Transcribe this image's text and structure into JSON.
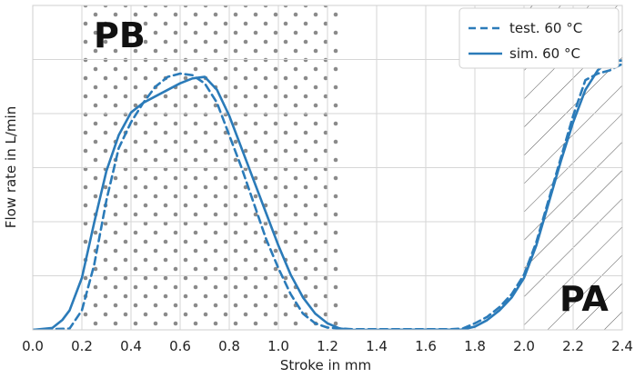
{
  "chart_data": {
    "type": "line",
    "xlabel": "Stroke in mm",
    "ylabel": "Flow rate in L/min",
    "xlim": [
      0.0,
      2.4
    ],
    "ylim": [
      0,
      1.0
    ],
    "x_ticks": [
      "0.0",
      "0.2",
      "0.4",
      "0.6",
      "0.8",
      "1.0",
      "1.2",
      "1.4",
      "1.6",
      "1.8",
      "2.0",
      "2.2",
      "2.4"
    ],
    "y_tick_labels_shown": false,
    "grid": true,
    "legend_position": "top-right",
    "regions": [
      {
        "label": "PB",
        "x_range": [
          0.2,
          1.25
        ],
        "pattern": "dots",
        "color": "#8a8a8a"
      },
      {
        "label": "PA",
        "x_range": [
          2.0,
          2.4
        ],
        "pattern": "diagonal-hatch",
        "color": "#666666"
      }
    ],
    "series": [
      {
        "name": "test. 60 °C",
        "style": "dashed",
        "color": "#2b7bb9",
        "points": [
          [
            0.0,
            0.0
          ],
          [
            0.15,
            0.004
          ],
          [
            0.2,
            0.06
          ],
          [
            0.25,
            0.2
          ],
          [
            0.3,
            0.4
          ],
          [
            0.35,
            0.56
          ],
          [
            0.4,
            0.64
          ],
          [
            0.45,
            0.7
          ],
          [
            0.5,
            0.75
          ],
          [
            0.55,
            0.78
          ],
          [
            0.6,
            0.79
          ],
          [
            0.65,
            0.785
          ],
          [
            0.7,
            0.76
          ],
          [
            0.75,
            0.7
          ],
          [
            0.8,
            0.6
          ],
          [
            0.85,
            0.5
          ],
          [
            0.9,
            0.39
          ],
          [
            0.95,
            0.28
          ],
          [
            1.0,
            0.19
          ],
          [
            1.05,
            0.11
          ],
          [
            1.1,
            0.05
          ],
          [
            1.15,
            0.02
          ],
          [
            1.2,
            0.007
          ],
          [
            1.3,
            0.002
          ],
          [
            1.7,
            0.002
          ],
          [
            1.75,
            0.004
          ],
          [
            1.8,
            0.02
          ],
          [
            1.85,
            0.04
          ],
          [
            1.9,
            0.07
          ],
          [
            1.95,
            0.11
          ],
          [
            2.0,
            0.17
          ],
          [
            2.05,
            0.27
          ],
          [
            2.1,
            0.4
          ],
          [
            2.15,
            0.53
          ],
          [
            2.2,
            0.66
          ],
          [
            2.25,
            0.77
          ],
          [
            2.3,
            0.79
          ],
          [
            2.35,
            0.8
          ],
          [
            2.4,
            0.82
          ]
        ]
      },
      {
        "name": "sim. 60 °C",
        "style": "solid",
        "color": "#2b7bb9",
        "points": [
          [
            0.0,
            0.0
          ],
          [
            0.08,
            0.006
          ],
          [
            0.12,
            0.03
          ],
          [
            0.15,
            0.06
          ],
          [
            0.2,
            0.16
          ],
          [
            0.25,
            0.33
          ],
          [
            0.3,
            0.49
          ],
          [
            0.35,
            0.6
          ],
          [
            0.4,
            0.67
          ],
          [
            0.45,
            0.7
          ],
          [
            0.5,
            0.72
          ],
          [
            0.55,
            0.74
          ],
          [
            0.6,
            0.76
          ],
          [
            0.65,
            0.775
          ],
          [
            0.7,
            0.78
          ],
          [
            0.75,
            0.74
          ],
          [
            0.8,
            0.66
          ],
          [
            0.85,
            0.56
          ],
          [
            0.9,
            0.46
          ],
          [
            0.95,
            0.36
          ],
          [
            1.0,
            0.26
          ],
          [
            1.05,
            0.17
          ],
          [
            1.1,
            0.1
          ],
          [
            1.15,
            0.05
          ],
          [
            1.2,
            0.02
          ],
          [
            1.25,
            0.004
          ],
          [
            1.3,
            0.0
          ],
          [
            1.75,
            0.001
          ],
          [
            1.8,
            0.01
          ],
          [
            1.85,
            0.03
          ],
          [
            1.9,
            0.06
          ],
          [
            1.95,
            0.1
          ],
          [
            2.0,
            0.16
          ],
          [
            2.05,
            0.26
          ],
          [
            2.1,
            0.39
          ],
          [
            2.15,
            0.52
          ],
          [
            2.2,
            0.64
          ],
          [
            2.25,
            0.74
          ],
          [
            2.3,
            0.8
          ],
          [
            2.35,
            0.83
          ],
          [
            2.4,
            0.83
          ]
        ]
      }
    ]
  }
}
